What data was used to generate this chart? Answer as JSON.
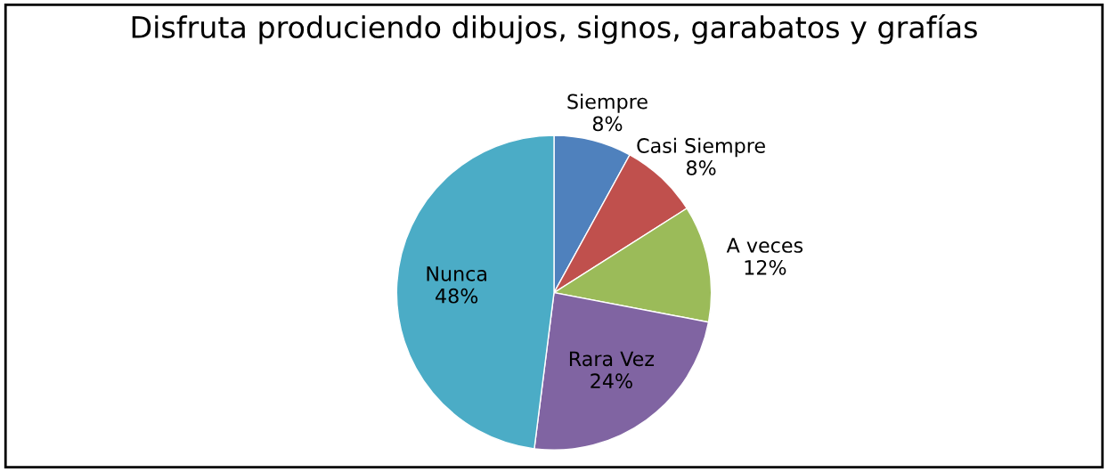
{
  "chart_data": {
    "type": "pie",
    "title": "Disfruta produciendo dibujos, signos, garabatos y grafías",
    "categories": [
      "Siempre",
      "Casi Siempre",
      "A veces",
      "Rara Vez",
      "Nunca"
    ],
    "values": [
      8,
      8,
      12,
      24,
      48
    ],
    "value_labels": [
      "8%",
      "8%",
      "12%",
      "24%",
      "48%"
    ],
    "colors": [
      "#4f81bd",
      "#c0504d",
      "#9bbb59",
      "#8064a2",
      "#4bacc6"
    ],
    "legend": false
  }
}
